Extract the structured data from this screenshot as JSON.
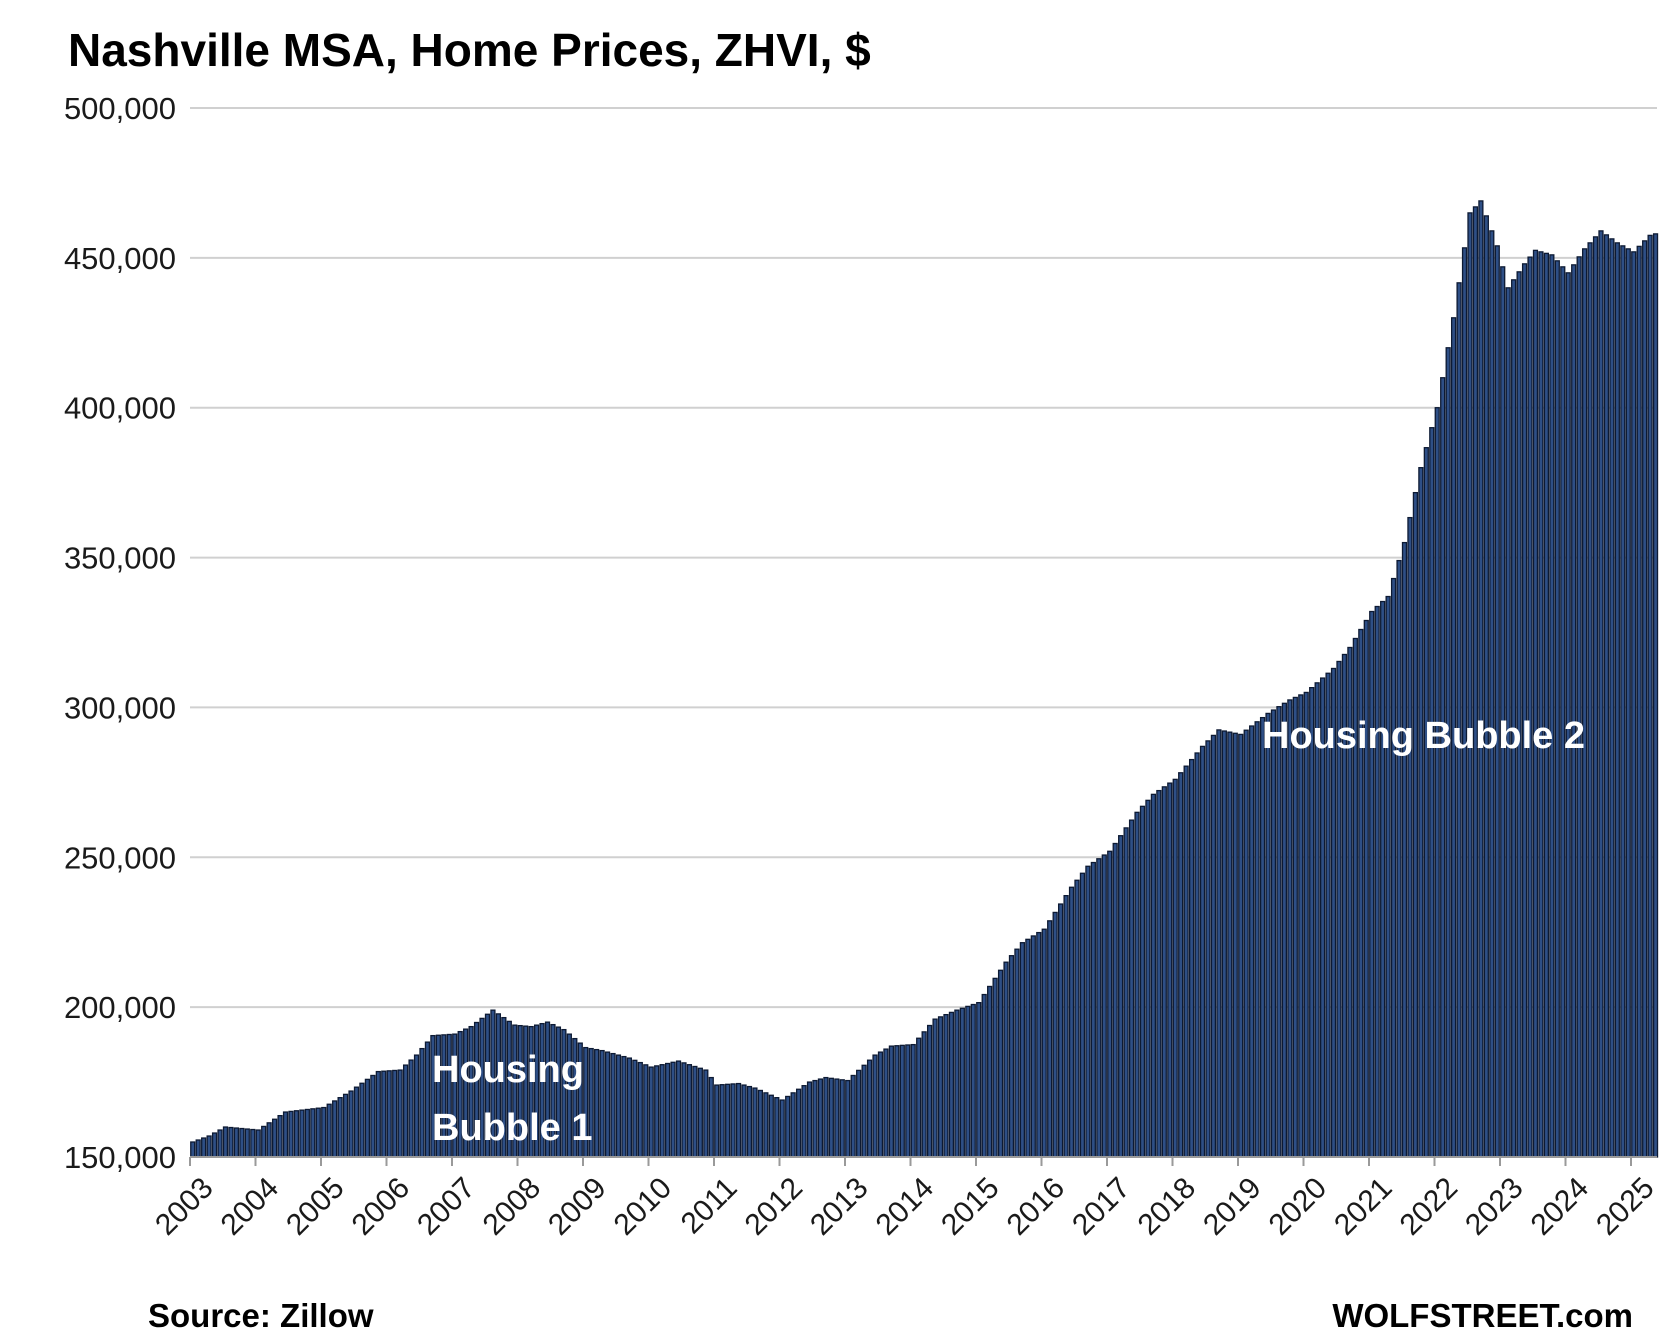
{
  "chart_data": {
    "type": "bar",
    "title": "Nashville MSA, Home Prices, ZHVI, $",
    "ylim": [
      150000,
      500000
    ],
    "yticks": [
      "150,000",
      "200,000",
      "250,000",
      "300,000",
      "350,000",
      "400,000",
      "450,000",
      "500,000"
    ],
    "ytick_values": [
      150000,
      200000,
      250000,
      300000,
      350000,
      400000,
      450000,
      500000
    ],
    "xticks": [
      "2003",
      "2004",
      "2005",
      "2006",
      "2007",
      "2008",
      "2009",
      "2010",
      "2011",
      "2012",
      "2013",
      "2014",
      "2015",
      "2016",
      "2017",
      "2018",
      "2019",
      "2020",
      "2021",
      "2022",
      "2023",
      "2024",
      "2025"
    ],
    "grid": true,
    "legend": "none",
    "frequency": "monthly",
    "start": "2003-01",
    "anchors": [
      [
        "2003-01",
        155000
      ],
      [
        "2003-04",
        157000
      ],
      [
        "2003-07",
        160000
      ],
      [
        "2004-01",
        159000
      ],
      [
        "2004-06",
        165000
      ],
      [
        "2005-01",
        166500
      ],
      [
        "2005-06",
        172000
      ],
      [
        "2005-11",
        178500
      ],
      [
        "2006-03",
        179000
      ],
      [
        "2006-06",
        184000
      ],
      [
        "2006-09",
        190500
      ],
      [
        "2007-01",
        191000
      ],
      [
        "2007-04",
        193500
      ],
      [
        "2007-08",
        199000
      ],
      [
        "2007-12",
        194000
      ],
      [
        "2008-03",
        193500
      ],
      [
        "2008-06",
        195000
      ],
      [
        "2008-09",
        192500
      ],
      [
        "2009-01",
        186500
      ],
      [
        "2009-04",
        185500
      ],
      [
        "2009-09",
        183000
      ],
      [
        "2010-01",
        180000
      ],
      [
        "2010-06",
        182000
      ],
      [
        "2010-11",
        179000
      ],
      [
        "2011-01",
        174000
      ],
      [
        "2011-05",
        174500
      ],
      [
        "2011-08",
        173000
      ],
      [
        "2012-01",
        169000
      ],
      [
        "2012-06",
        175000
      ],
      [
        "2012-09",
        176500
      ],
      [
        "2013-01",
        175500
      ],
      [
        "2013-06",
        184000
      ],
      [
        "2013-09",
        187000
      ],
      [
        "2014-01",
        187500
      ],
      [
        "2014-05",
        196000
      ],
      [
        "2014-09",
        199000
      ],
      [
        "2015-01",
        201500
      ],
      [
        "2015-06",
        215000
      ],
      [
        "2015-09",
        221500
      ],
      [
        "2016-01",
        226000
      ],
      [
        "2016-06",
        240000
      ],
      [
        "2016-09",
        247000
      ],
      [
        "2017-01",
        252000
      ],
      [
        "2017-06",
        265000
      ],
      [
        "2017-09",
        271000
      ],
      [
        "2018-01",
        276000
      ],
      [
        "2018-06",
        287000
      ],
      [
        "2018-09",
        292500
      ],
      [
        "2019-01",
        291000
      ],
      [
        "2019-06",
        298000
      ],
      [
        "2019-10",
        302500
      ],
      [
        "2020-01",
        305000
      ],
      [
        "2020-06",
        313000
      ],
      [
        "2020-09",
        320000
      ],
      [
        "2021-01",
        332000
      ],
      [
        "2021-04",
        337000
      ],
      [
        "2021-07",
        355000
      ],
      [
        "2021-10",
        380000
      ],
      [
        "2022-01",
        400000
      ],
      [
        "2022-04",
        430000
      ],
      [
        "2022-07",
        465000
      ],
      [
        "2022-09",
        469000
      ],
      [
        "2022-12",
        454000
      ],
      [
        "2023-02",
        440000
      ],
      [
        "2023-05",
        448000
      ],
      [
        "2023-07",
        452500
      ],
      [
        "2023-10",
        451000
      ],
      [
        "2024-01",
        445000
      ],
      [
        "2024-04",
        453000
      ],
      [
        "2024-07",
        459000
      ],
      [
        "2024-10",
        455000
      ],
      [
        "2025-01",
        452000
      ],
      [
        "2025-04",
        457500
      ],
      [
        "2025-05",
        458000
      ]
    ],
    "annotations": [
      "Housing",
      "Bubble 1",
      "Housing Bubble 2"
    ]
  },
  "footer": {
    "source": "Source: Zillow",
    "brand": "WOLFSTREET.com"
  }
}
